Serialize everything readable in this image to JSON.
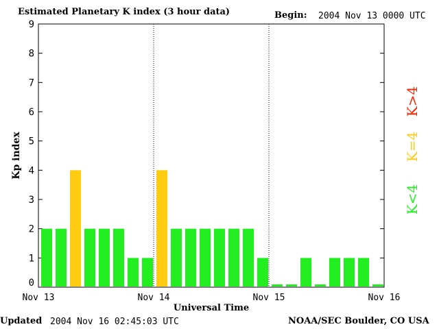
{
  "header": {
    "title": "Estimated Planetary K index (3 hour data)",
    "begin_label": "Begin:",
    "begin_value": "2004 Nov 13 0000 UTC"
  },
  "footer": {
    "updated_label": "Updated",
    "updated_value": "2004 Nov 16 02:45:03 UTC",
    "source": "NOAA/SEC Boulder, CO USA"
  },
  "legend": {
    "low": "K<4",
    "equal": "K=4",
    "high": "K>4"
  },
  "colors": {
    "low": "#22ee22",
    "equal": "#ffcc11",
    "high": "#ff2200"
  },
  "chart_data": {
    "type": "bar",
    "title": "Estimated Planetary K index (3 hour data)",
    "xlabel": "Universal Time",
    "ylabel": "Kp index",
    "ylim": [
      0,
      9
    ],
    "yticks": [
      0,
      1,
      2,
      3,
      4,
      5,
      6,
      7,
      8,
      9
    ],
    "day_labels": [
      "Nov 13",
      "Nov 14",
      "Nov 15",
      "Nov 16"
    ],
    "interval_hours": 3,
    "values": [
      2,
      2,
      4,
      2,
      2,
      2,
      1,
      1,
      4,
      2,
      2,
      2,
      2,
      2,
      2,
      1,
      0,
      0,
      1,
      0,
      1,
      1,
      1,
      0
    ]
  }
}
